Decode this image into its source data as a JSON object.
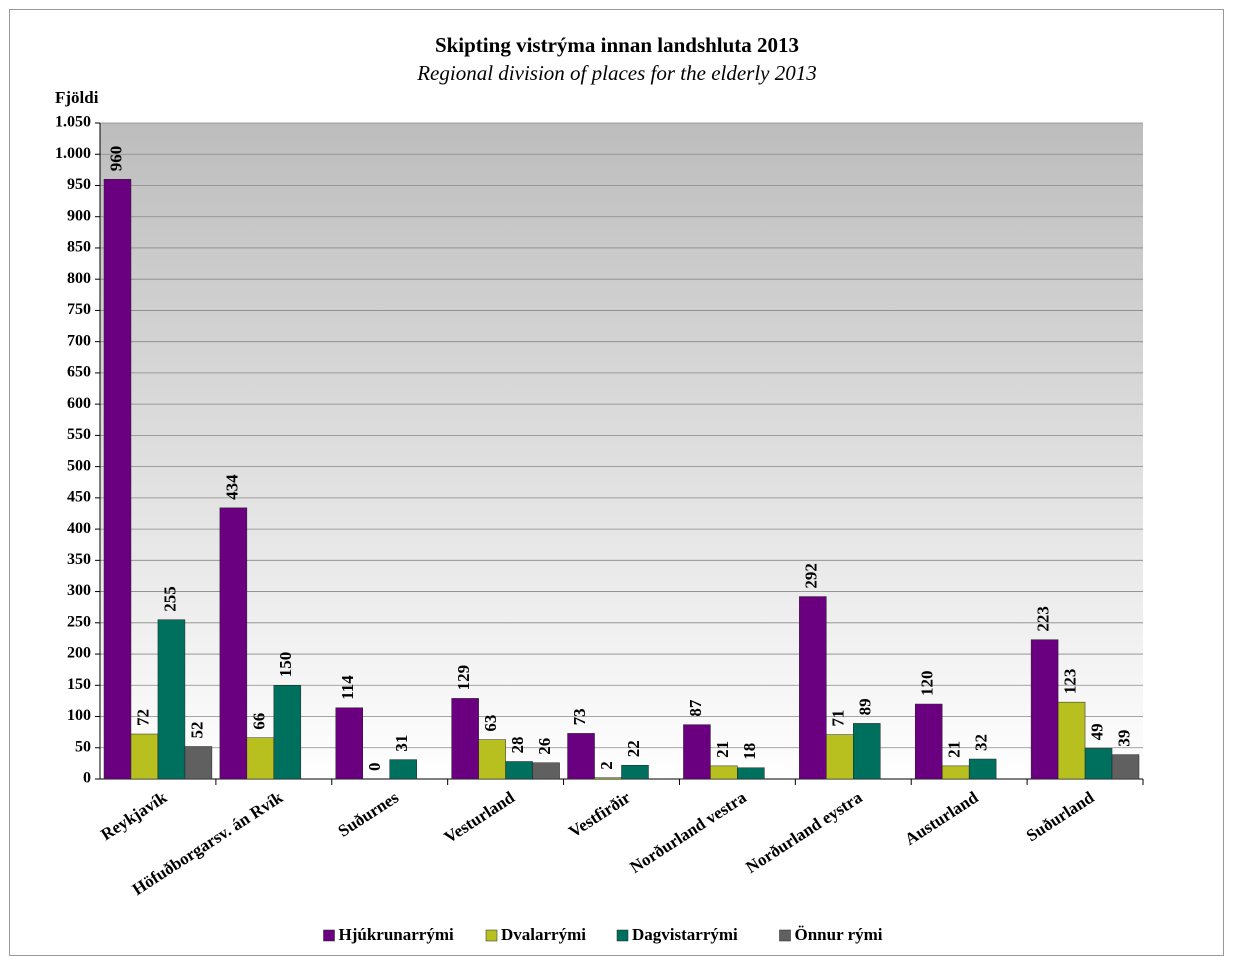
{
  "chart_data": {
    "type": "bar",
    "title": "Skipting vistrýma innan landshluta 2013",
    "subtitle": "Regional division of places for the elderly 2013",
    "y_label": "Fjöldi",
    "categories": [
      "Reykjavík",
      "Höfuðborgarsv. án Rvík",
      "Suðurnes",
      "Vesturland",
      "Vestfirðir",
      "Norðurland vestra",
      "Norðurland eystra",
      "Austurland",
      "Suðurland"
    ],
    "series": [
      {
        "name": "Hjúkrunarrými",
        "color": "#6a0080",
        "values": [
          960,
          434,
          114,
          129,
          73,
          87,
          292,
          120,
          223
        ]
      },
      {
        "name": "Dvalarrými",
        "color": "#b8c020",
        "values": [
          72,
          66,
          0,
          63,
          2,
          21,
          71,
          21,
          123
        ]
      },
      {
        "name": "Dagvistarrými",
        "color": "#00705e",
        "values": [
          255,
          150,
          31,
          28,
          22,
          18,
          89,
          32,
          49
        ]
      },
      {
        "name": "Önnur rými",
        "color": "#606060",
        "values": [
          52,
          null,
          null,
          26,
          null,
          null,
          null,
          null,
          39
        ]
      }
    ],
    "ylim": [
      0,
      1050
    ],
    "yticks": [
      0,
      50,
      100,
      150,
      200,
      250,
      300,
      350,
      400,
      450,
      500,
      550,
      600,
      650,
      700,
      750,
      800,
      850,
      900,
      950,
      {
        "value": 1000,
        "label": "1.000"
      },
      {
        "value": 1050,
        "label": "1.050"
      }
    ],
    "grid": true,
    "legend": "bottom"
  }
}
